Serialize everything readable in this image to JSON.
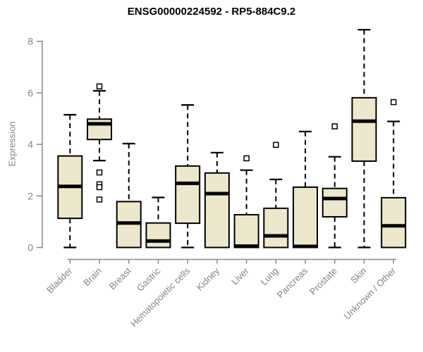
{
  "chart_data": {
    "type": "boxplot",
    "title": "ENSG00000224592 - RP5-884C9.2",
    "ylabel": "Expression",
    "xlabel": "",
    "ylim": [
      0,
      8.5
    ],
    "yticks": [
      0,
      2,
      4,
      6,
      8
    ],
    "grid": false,
    "legend": null,
    "categories": [
      "Bladder",
      "Brain",
      "Breast",
      "Gastric",
      "Hematopoietic cells",
      "Kidney",
      "Liver",
      "Lung",
      "Pancreas",
      "Prostate",
      "Skin",
      "Unknown / Other"
    ],
    "series": [
      {
        "name": "Bladder",
        "whisker_low": 0,
        "q1": 1.13,
        "median": 2.37,
        "q3": 3.55,
        "whisker_high": 5.15,
        "outliers": []
      },
      {
        "name": "Brain",
        "whisker_low": 3.37,
        "q1": 4.19,
        "median": 4.8,
        "q3": 4.98,
        "whisker_high": 6.08,
        "outliers": [
          6.25,
          2.91,
          2.45,
          2.34,
          1.86
        ]
      },
      {
        "name": "Breast",
        "whisker_low": 0,
        "q1": 0,
        "median": 0.95,
        "q3": 1.78,
        "whisker_high": 4.03,
        "outliers": []
      },
      {
        "name": "Gastric",
        "whisker_low": 0,
        "q1": 0,
        "median": 0.25,
        "q3": 0.95,
        "whisker_high": 1.94,
        "outliers": []
      },
      {
        "name": "Hematopoietic cells",
        "whisker_low": 0,
        "q1": 0.94,
        "median": 2.49,
        "q3": 3.16,
        "whisker_high": 5.53,
        "outliers": []
      },
      {
        "name": "Kidney",
        "whisker_low": 0,
        "q1": 0,
        "median": 2.09,
        "q3": 2.89,
        "whisker_high": 3.68,
        "outliers": []
      },
      {
        "name": "Liver",
        "whisker_low": 0,
        "q1": 0,
        "median": 0.05,
        "q3": 1.27,
        "whisker_high": 3.0,
        "outliers": [
          3.46
        ]
      },
      {
        "name": "Lung",
        "whisker_low": 0,
        "q1": 0,
        "median": 0.45,
        "q3": 1.52,
        "whisker_high": 2.64,
        "outliers": [
          3.98
        ]
      },
      {
        "name": "Pancreas",
        "whisker_low": 0,
        "q1": 0,
        "median": 0.04,
        "q3": 2.34,
        "whisker_high": 4.5,
        "outliers": []
      },
      {
        "name": "Prostate",
        "whisker_low": 0,
        "q1": 1.19,
        "median": 1.9,
        "q3": 2.29,
        "whisker_high": 3.52,
        "outliers": [
          4.7
        ]
      },
      {
        "name": "Skin",
        "whisker_low": 0,
        "q1": 3.35,
        "median": 4.9,
        "q3": 5.81,
        "whisker_high": 8.45,
        "outliers": []
      },
      {
        "name": "Unknown / Other",
        "whisker_low": 0,
        "q1": 0,
        "median": 0.84,
        "q3": 1.93,
        "whisker_high": 4.89,
        "outliers": [
          5.64
        ]
      }
    ],
    "colors": {
      "box_fill": "#EDE8CC",
      "box_border": "#000000",
      "median": "#000000",
      "whisker": "#000000",
      "outlier_fill": "#ffffff",
      "axis": "#888888",
      "tick_label": "#848484",
      "title": "#000000"
    }
  }
}
